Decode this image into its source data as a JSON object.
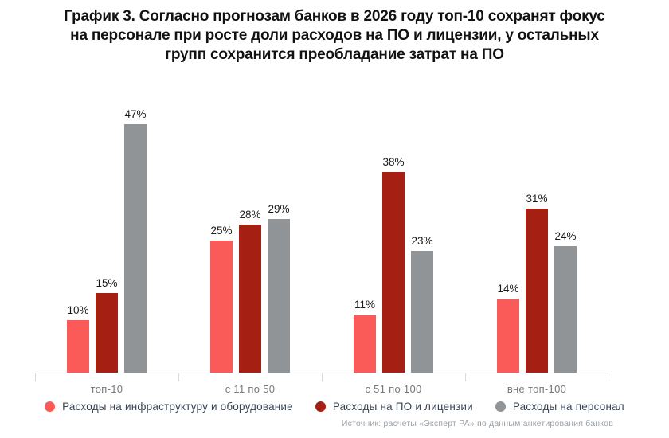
{
  "title_lines": [
    "График 3. Согласно прогнозам банков в 2026 году топ-10 сохранят фокус",
    "на персонале при росте доли расходов на ПО и лицензии, у остальных",
    "групп сохранится преобладание затрат на ПО"
  ],
  "chart_data": {
    "type": "bar",
    "title": "График 3. Согласно прогнозам банков в 2026 году топ-10 сохранят фокус на персонале при росте доли расходов на ПО и лицензии, у остальных групп сохранится преобладание затрат на ПО",
    "categories": [
      "топ-10",
      "с 11 по 50",
      "с 51 по 100",
      "вне топ-100"
    ],
    "series": [
      {
        "key": "infrastructure",
        "name": "Расходы на инфраструктуру и оборудование",
        "color": "#fa5a58",
        "values": [
          10,
          25,
          11,
          14
        ]
      },
      {
        "key": "software",
        "name": "Расходы на ПО и лицензии",
        "color": "#a51f12",
        "values": [
          15,
          28,
          38,
          31
        ]
      },
      {
        "key": "personnel",
        "name": "Расходы на персонал",
        "color": "#909497",
        "values": [
          47,
          29,
          23,
          24
        ]
      }
    ],
    "value_suffix": "%",
    "ylim": [
      0,
      50
    ],
    "grid": false,
    "legend_position": "bottom"
  },
  "source": "Источник: расчеты «Эксперт РА» по данным анкетирования банков",
  "colors": {
    "axis": "#d8dadc",
    "category_label": "#75787b",
    "value_label": "#1a1a1a",
    "legend_text": "#3a4553",
    "source_text": "#9aa1a8",
    "title_text": "#121212"
  }
}
